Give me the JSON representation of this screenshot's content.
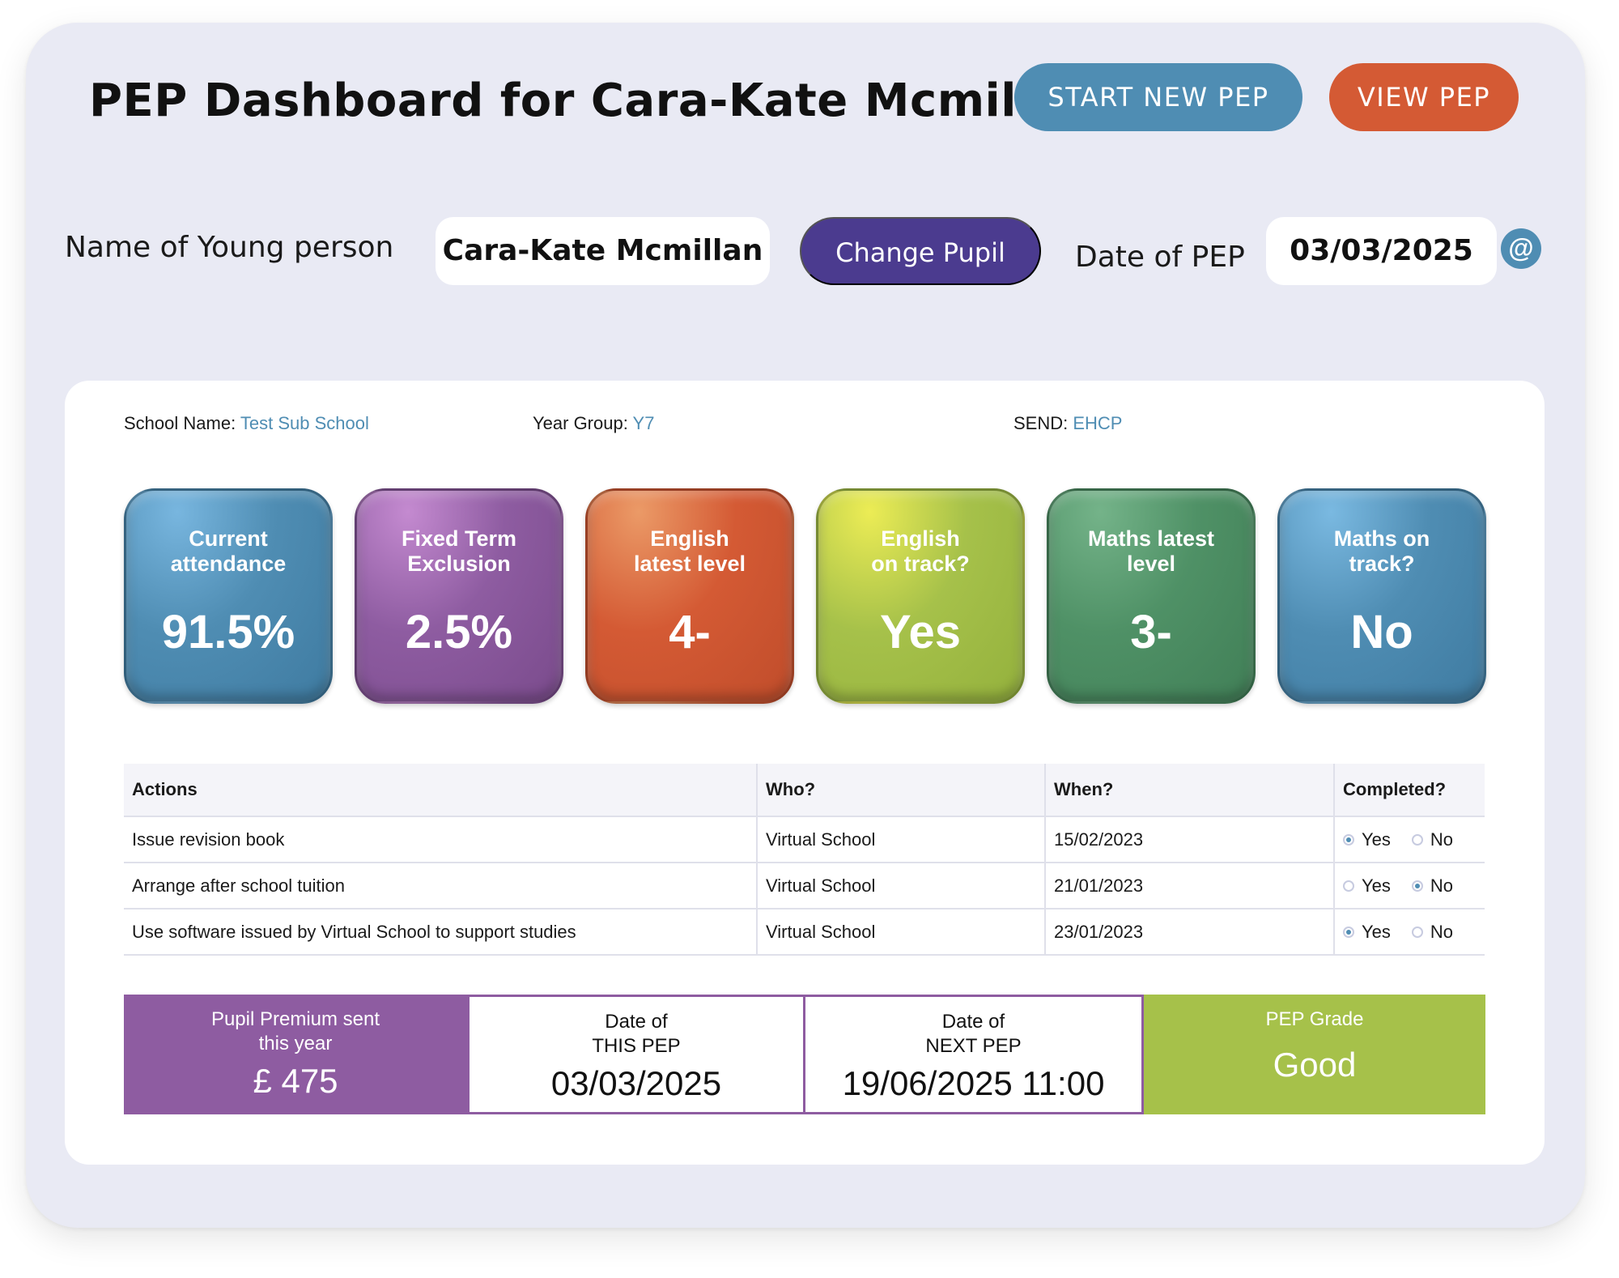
{
  "header": {
    "title_prefix": "PEP Dashboard for ",
    "title_name": "Cara-Kate Mcmillan",
    "start_button": "START NEW PEP",
    "view_button": "VIEW PEP"
  },
  "pupil_bar": {
    "name_label": "Name of Young person",
    "name_value": "Cara-Kate Mcmillan",
    "change_button": "Change Pupil",
    "date_label": "Date of PEP",
    "date_value": "03/03/2025",
    "at_icon_glyph": "@"
  },
  "meta": {
    "school_label": "School Name: ",
    "school_value": "Test Sub School",
    "year_label": "Year Group: ",
    "year_value": "Y7",
    "send_label": "SEND: ",
    "send_value": "EHCP"
  },
  "tiles": [
    {
      "label": "Current\nattendance",
      "value": "91.5%",
      "color": "#4f8db3"
    },
    {
      "label": "Fixed Term\nExclusion",
      "value": "2.5%",
      "color": "#8e5ca1"
    },
    {
      "label": "English\nlatest level",
      "value": "4-",
      "color": "#d45a34"
    },
    {
      "label": "English\non track?",
      "value": "Yes",
      "color": "#a6c14a"
    },
    {
      "label": "Maths latest\nlevel",
      "value": "3-",
      "color": "#4f9166"
    },
    {
      "label": "Maths on\ntrack?",
      "value": "No",
      "color": "#4f8db3"
    }
  ],
  "actions_table": {
    "headers": [
      "Actions",
      "Who?",
      "When?",
      "Completed?"
    ],
    "yes_label": "Yes",
    "no_label": "No",
    "rows": [
      {
        "action": "Issue revision book",
        "who": "Virtual School",
        "when": "15/02/2023",
        "completed": "Yes"
      },
      {
        "action": "Arrange after school tuition",
        "who": "Virtual School",
        "when": "21/01/2023",
        "completed": "No"
      },
      {
        "action": "Use software issued by Virtual School to support studies",
        "who": "Virtual School",
        "when": "23/01/2023",
        "completed": "Yes"
      }
    ]
  },
  "summary": {
    "premium_label": "Pupil Premium sent\nthis year",
    "premium_value": "£ 475",
    "this_pep_label": "Date of\nTHIS PEP",
    "this_pep_value": "03/03/2025",
    "next_pep_label": "Date of\nNEXT PEP",
    "next_pep_value": "19/06/2025 11:00",
    "grade_label": "PEP Grade",
    "grade_value": "Good"
  },
  "colors": {
    "background": "#e9eaf4",
    "blue": "#4f8db3",
    "orange": "#d45a34",
    "indigo": "#4b3b8f",
    "purple": "#8e5ca1",
    "lime": "#a6c14a",
    "green": "#4f9166"
  }
}
